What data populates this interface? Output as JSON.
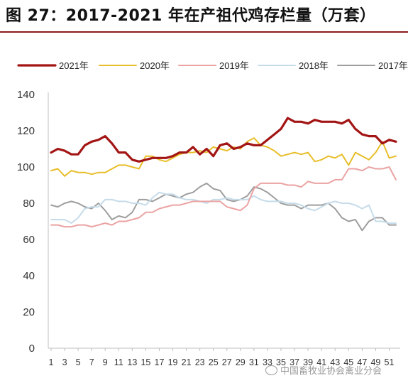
{
  "figure": {
    "title": "图 27：2017-2021 年在产祖代鸡存栏量（万套）",
    "watermark": "中国畜牧业协会禽业分会",
    "watermark_icon": "wechat-icon"
  },
  "chart_data": {
    "type": "line",
    "title": "图 27：2017-2021 年在产祖代鸡存栏量（万套）",
    "xlabel": "",
    "ylabel": "",
    "ylim": [
      0,
      140
    ],
    "yticks": [
      0,
      20,
      40,
      60,
      80,
      100,
      120,
      140
    ],
    "xticks": [
      "1",
      "3",
      "5",
      "7",
      "9",
      "11",
      "13",
      "15",
      "17",
      "19",
      "21",
      "23",
      "25",
      "27",
      "29",
      "31",
      "33",
      "35",
      "37",
      "39",
      "41",
      "43",
      "45",
      "47",
      "49",
      "51"
    ],
    "x": [
      1,
      2,
      3,
      4,
      5,
      6,
      7,
      8,
      9,
      10,
      11,
      12,
      13,
      14,
      15,
      16,
      17,
      18,
      19,
      20,
      21,
      22,
      23,
      24,
      25,
      26,
      27,
      28,
      29,
      30,
      31,
      32,
      33,
      34,
      35,
      36,
      37,
      38,
      39,
      40,
      41,
      42,
      43,
      44,
      45,
      46,
      47,
      48,
      49,
      50,
      51,
      52
    ],
    "grid": false,
    "legend_position": "top",
    "series": [
      {
        "name": "2021年",
        "color": "#a31515",
        "width": 3.2,
        "values": [
          108,
          110,
          109,
          107,
          107,
          112,
          114,
          115,
          117,
          113,
          108,
          108,
          104,
          103,
          104,
          105,
          105,
          105,
          106,
          108,
          108,
          111,
          107,
          110,
          106,
          112,
          113,
          110,
          111,
          113,
          112,
          112,
          115,
          118,
          121,
          127,
          125,
          125,
          124,
          126,
          125,
          125,
          125,
          124,
          126,
          121,
          118,
          117,
          117,
          113,
          115,
          114
        ]
      },
      {
        "name": "2020年",
        "color": "#e8be2a",
        "width": 2,
        "values": [
          98,
          99,
          95,
          98,
          97,
          97,
          96,
          97,
          97,
          99,
          101,
          101,
          100,
          99,
          106,
          106,
          104,
          103,
          105,
          107,
          108,
          108,
          109,
          108,
          111,
          110,
          109,
          111,
          110,
          114,
          116,
          112,
          111,
          109,
          106,
          107,
          108,
          107,
          108,
          103,
          104,
          106,
          105,
          107,
          101,
          108,
          106,
          104,
          108,
          114,
          105,
          106
        ]
      },
      {
        "name": "2019年",
        "color": "#eba3a3",
        "width": 2,
        "values": [
          68,
          68,
          67,
          67,
          68,
          68,
          67,
          68,
          69,
          68,
          70,
          70,
          71,
          72,
          75,
          75,
          77,
          78,
          79,
          79,
          80,
          81,
          81,
          81,
          81,
          81,
          78,
          77,
          76,
          79,
          88,
          91,
          91,
          91,
          91,
          90,
          90,
          89,
          92,
          91,
          91,
          91,
          93,
          93,
          99,
          99,
          98,
          100,
          99,
          99,
          100,
          93
        ]
      },
      {
        "name": "2018年",
        "color": "#c6dcea",
        "width": 2,
        "values": [
          71,
          71,
          71,
          69,
          72,
          77,
          78,
          78,
          82,
          82,
          81,
          81,
          80,
          80,
          79,
          83,
          86,
          85,
          85,
          83,
          82,
          82,
          81,
          80,
          82,
          82,
          83,
          82,
          82,
          82,
          84,
          82,
          81,
          81,
          81,
          80,
          80,
          79,
          77,
          76,
          78,
          80,
          81,
          80,
          80,
          79,
          77,
          79,
          70,
          70,
          69,
          69
        ]
      },
      {
        "name": "2017年",
        "color": "#9e9e9e",
        "width": 2,
        "values": [
          79,
          78,
          80,
          81,
          80,
          78,
          77,
          80,
          76,
          71,
          73,
          72,
          75,
          82,
          82,
          81,
          83,
          85,
          84,
          83,
          85,
          86,
          89,
          91,
          88,
          87,
          82,
          81,
          82,
          84,
          89,
          88,
          86,
          83,
          80,
          79,
          79,
          77,
          79,
          79,
          79,
          80,
          77,
          72,
          70,
          71,
          65,
          70,
          72,
          72,
          68,
          68
        ]
      }
    ]
  }
}
